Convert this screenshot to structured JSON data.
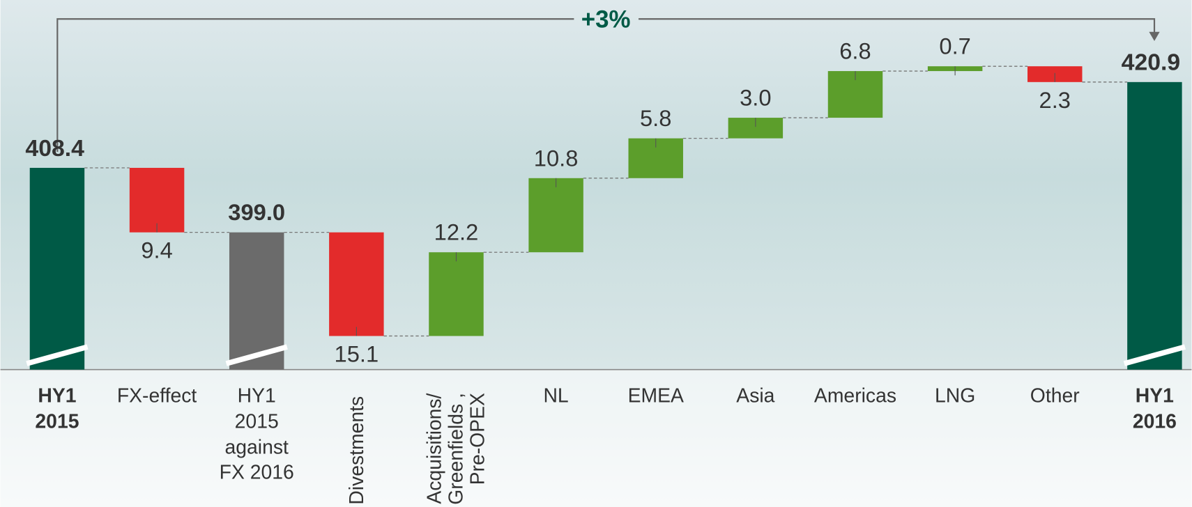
{
  "chart_data": {
    "type": "waterfall",
    "annotation": "+3%",
    "categories": [
      "HY1\n2015",
      "FX-effect",
      "HY1\n2015\nagainst\nFX 2016",
      "Divestments",
      "Acquisitions/\nGreenfields ,\nPre-OPEX",
      "NL",
      "EMEA",
      "Asia",
      "Americas",
      "LNG",
      "Other",
      "HY1\n2016"
    ],
    "measure": [
      "total",
      "relative",
      "total",
      "relative",
      "relative",
      "relative",
      "relative",
      "relative",
      "relative",
      "relative",
      "relative",
      "total"
    ],
    "values": [
      408.4,
      -9.4,
      399.0,
      -15.1,
      12.2,
      10.8,
      5.8,
      3.0,
      6.8,
      0.7,
      -2.3,
      420.9
    ],
    "value_labels": [
      "408.4",
      "9.4",
      "399.0",
      "15.1",
      "12.2",
      "10.8",
      "5.8",
      "3.0",
      "6.8",
      "0.7",
      "2.3",
      "420.9"
    ],
    "colors": [
      "#005a46",
      "#e32b2b",
      "#6b6b6b",
      "#e32b2b",
      "#5c9e2b",
      "#5c9e2b",
      "#5c9e2b",
      "#5c9e2b",
      "#5c9e2b",
      "#5c9e2b",
      "#e32b2b",
      "#005a46"
    ],
    "label_rotation": [
      0,
      0,
      0,
      90,
      90,
      0,
      0,
      0,
      0,
      0,
      0,
      0
    ],
    "label_bold": [
      true,
      false,
      false,
      false,
      false,
      false,
      false,
      false,
      false,
      false,
      false,
      true
    ],
    "ylim": [
      379,
      426
    ]
  }
}
